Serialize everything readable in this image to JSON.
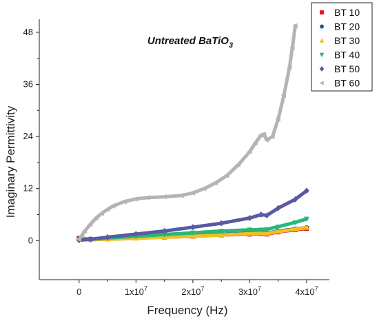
{
  "chart_data": {
    "type": "scatter",
    "title": "Untreated BaTiO",
    "title_subscript": "3",
    "xlabel": "Frequency (Hz)",
    "ylabel": "Imaginary Permittivity",
    "xlim": [
      -7000000,
      44000000
    ],
    "ylim": [
      -9,
      51
    ],
    "x_ticks": [
      0,
      10000000,
      20000000,
      30000000,
      40000000
    ],
    "x_tick_labels": [
      {
        "base": "0",
        "exp": ""
      },
      {
        "base": "1x10",
        "exp": "7"
      },
      {
        "base": "2x10",
        "exp": "7"
      },
      {
        "base": "3x10",
        "exp": "7"
      },
      {
        "base": "4x10",
        "exp": "7"
      }
    ],
    "y_ticks": [
      0,
      12,
      24,
      36,
      48
    ],
    "y_tick_labels": [
      "0",
      "12",
      "24",
      "36",
      "48"
    ],
    "legend_position": "top-right",
    "series": [
      {
        "name": "BT 10",
        "color": "#e8141d",
        "marker": "square",
        "x": [
          0,
          2000000,
          5000000,
          10000000,
          15000000,
          20000000,
          25000000,
          30000000,
          32000000,
          33000000,
          35000000,
          38000000,
          40000000
        ],
        "y": [
          0.5,
          0.3,
          0.4,
          0.6,
          0.8,
          1.0,
          1.3,
          1.5,
          1.6,
          1.5,
          2.0,
          2.5,
          2.8
        ]
      },
      {
        "name": "BT 20",
        "color": "#1d5f95",
        "marker": "circle",
        "x": [
          0,
          2000000,
          5000000,
          10000000,
          15000000,
          20000000,
          25000000,
          30000000,
          32000000,
          33000000,
          35000000,
          38000000,
          40000000
        ],
        "y": [
          0.4,
          0.3,
          0.4,
          0.6,
          0.9,
          1.1,
          1.4,
          1.7,
          1.8,
          1.7,
          2.2,
          2.7,
          3.0
        ]
      },
      {
        "name": "BT 30",
        "color": "#f2c01e",
        "marker": "triangle-up",
        "x": [
          0,
          2000000,
          5000000,
          10000000,
          15000000,
          20000000,
          25000000,
          30000000,
          32000000,
          33000000,
          35000000,
          38000000,
          40000000
        ],
        "y": [
          0.3,
          0.2,
          0.3,
          0.5,
          0.8,
          1.0,
          1.3,
          1.6,
          1.7,
          1.6,
          2.1,
          2.6,
          3.0
        ]
      },
      {
        "name": "BT 40",
        "color": "#27b87a",
        "marker": "triangle-down",
        "x": [
          0,
          2000000,
          5000000,
          10000000,
          15000000,
          20000000,
          25000000,
          30000000,
          32000000,
          33000000,
          35000000,
          38000000,
          40000000
        ],
        "y": [
          0.2,
          0.3,
          0.6,
          1.0,
          1.4,
          1.8,
          2.2,
          2.5,
          2.5,
          2.6,
          3.2,
          4.2,
          5.0
        ]
      },
      {
        "name": "BT 50",
        "color": "#5a5aa0",
        "marker": "diamond",
        "x": [
          0,
          2000000,
          5000000,
          10000000,
          15000000,
          20000000,
          25000000,
          30000000,
          32000000,
          33000000,
          35000000,
          38000000,
          40000000
        ],
        "y": [
          0.1,
          0.3,
          0.8,
          1.5,
          2.2,
          3.1,
          4.0,
          5.2,
          6.0,
          5.8,
          7.5,
          9.5,
          11.5
        ]
      },
      {
        "name": "BT 60",
        "color": "#b4b4b4",
        "marker": "triangle-left",
        "x": [
          0,
          500000,
          1000000,
          2000000,
          3000000,
          4000000,
          5000000,
          6000000,
          8000000,
          10000000,
          12000000,
          15000000,
          18000000,
          20000000,
          22000000,
          24000000,
          26000000,
          28000000,
          30000000,
          31000000,
          32000000,
          32500000,
          33000000,
          34000000,
          35000000,
          36000000,
          37000000,
          37500000,
          38000000
        ],
        "y": [
          0.3,
          1.2,
          2.2,
          3.8,
          5.2,
          6.3,
          7.2,
          8.0,
          9.0,
          9.6,
          9.9,
          10.1,
          10.4,
          11.0,
          12.0,
          13.3,
          15.0,
          17.5,
          20.5,
          22.5,
          24.3,
          24.5,
          23.2,
          24.0,
          28.0,
          33.5,
          40.0,
          44.5,
          49.5
        ]
      }
    ]
  }
}
